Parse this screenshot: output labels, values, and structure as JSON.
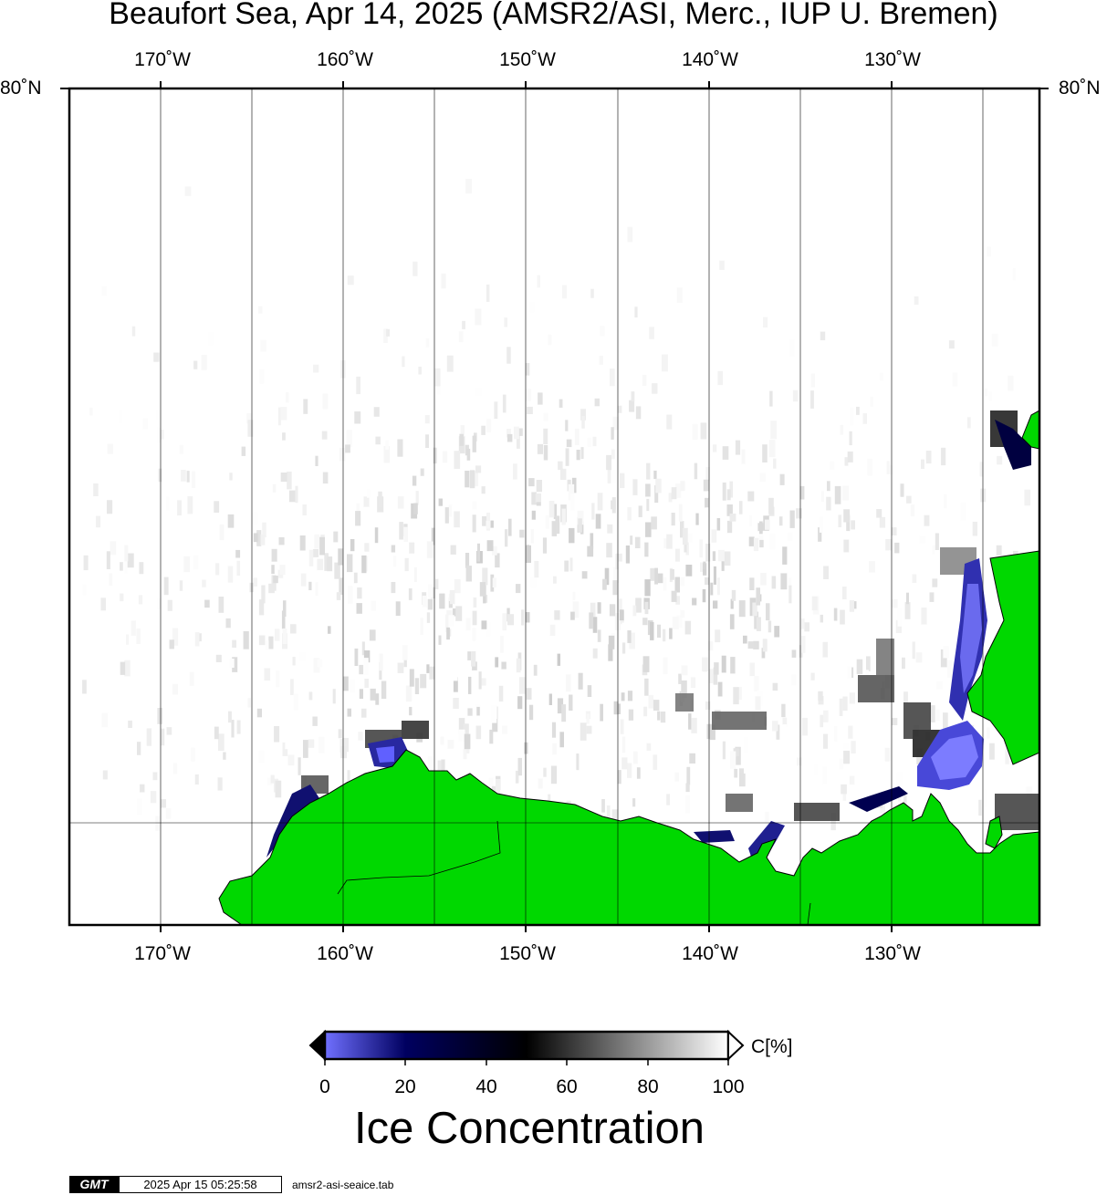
{
  "title": "Beaufort Sea, Apr 14, 2025 (AMSR2/ASI, Merc., IUP U. Bremen)",
  "lon_labels": [
    "170˚W",
    "160˚W",
    "150˚W",
    "140˚W",
    "130˚W"
  ],
  "lat_labels": {
    "top_left": "80˚N",
    "top_right": "80˚N"
  },
  "colors": {
    "land": "#00d800",
    "ice_low": "#7070ff",
    "ice_mid": "#000060",
    "ice_black": "#000000",
    "ice_high": "#ffffff",
    "frame": "#000000"
  },
  "colorbar": {
    "ticks": [
      "0",
      "20",
      "40",
      "60",
      "80",
      "100"
    ],
    "unit": "C[%]",
    "title": "Ice Concentration"
  },
  "footer": {
    "logo": "GMT",
    "timestamp": "2025 Apr 15 05:25:58",
    "file": "amsr2-asi-seaice.tab"
  }
}
